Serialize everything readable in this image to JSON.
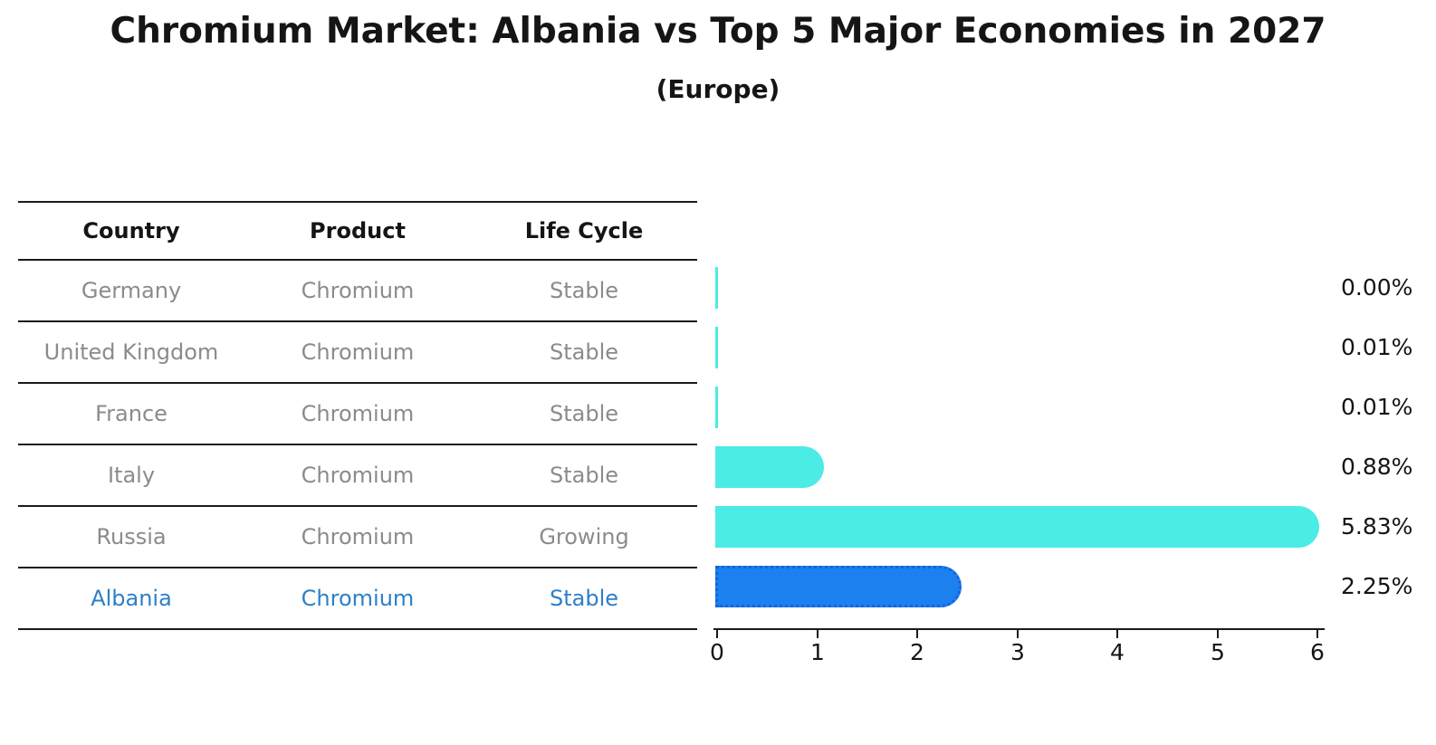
{
  "title": "Chromium Market: Albania vs Top 5 Major Economies in 2027",
  "subtitle": "(Europe)",
  "table": {
    "headers": {
      "country": "Country",
      "product": "Product",
      "life_cycle": "Life Cycle"
    },
    "rows": [
      {
        "country": "Germany",
        "product": "Chromium",
        "life_cycle": "Stable"
      },
      {
        "country": "United Kingdom",
        "product": "Chromium",
        "life_cycle": "Stable"
      },
      {
        "country": "France",
        "product": "Chromium",
        "life_cycle": "Stable"
      },
      {
        "country": "Italy",
        "product": "Chromium",
        "life_cycle": "Stable"
      },
      {
        "country": "Russia",
        "product": "Chromium",
        "life_cycle": "Growing"
      },
      {
        "country": "Albania",
        "product": "Chromium",
        "life_cycle": "Stable"
      }
    ]
  },
  "chart_data": {
    "type": "bar",
    "orientation": "horizontal",
    "title": "Chromium Market: Albania vs Top 5 Major Economies in 2027",
    "subtitle": "(Europe)",
    "categories": [
      "Germany",
      "United Kingdom",
      "France",
      "Italy",
      "Russia",
      "Albania"
    ],
    "values": [
      0.0,
      0.01,
      0.01,
      0.88,
      5.83,
      2.25
    ],
    "value_labels": [
      "0.00%",
      "0.01%",
      "0.01%",
      "0.88%",
      "5.83%",
      "2.25%"
    ],
    "xlim": [
      0,
      6
    ],
    "x_ticks": [
      "0",
      "1",
      "2",
      "3",
      "4",
      "5",
      "6"
    ],
    "grid": false,
    "legend": false,
    "bar_color": "#4bebe6",
    "highlight_index": 5,
    "highlight_bar_color": "#1c80ee"
  },
  "colors": {
    "bar_default": "#4bebe6",
    "bar_highlight": "#1c80ee",
    "highlight_border": "#1465dd",
    "highlight_text": "#2e7fc8",
    "row_text": "#8b8b8b",
    "header_text": "#151515",
    "axis": "#1a1a1a"
  }
}
